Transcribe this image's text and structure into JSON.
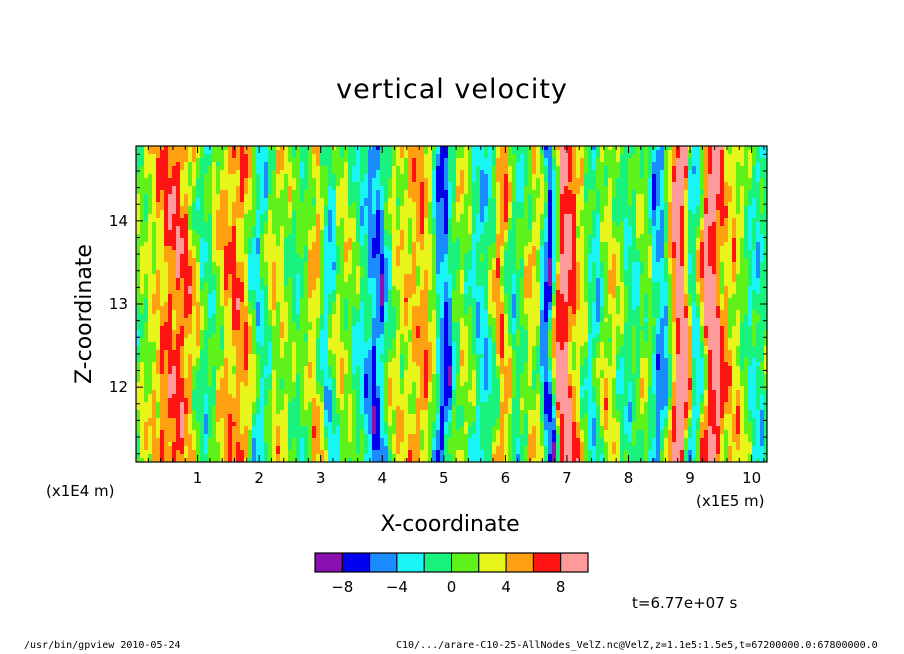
{
  "chart_data": {
    "type": "heatmap",
    "title": "vertical velocity",
    "xlabel": "X-coordinate",
    "ylabel": "Z-coordinate",
    "x_unit": "(x1E5 m)",
    "y_unit": "(x1E4 m)",
    "xlim": [
      0,
      10.25
    ],
    "ylim": [
      11.1,
      14.9
    ],
    "x_ticks": [
      1,
      2,
      3,
      4,
      5,
      6,
      7,
      8,
      9,
      10
    ],
    "y_ticks": [
      12,
      13,
      14
    ],
    "colorbar": {
      "levels": [
        -10,
        -8,
        -6,
        -4,
        -2,
        0,
        2,
        4,
        6,
        8,
        10
      ],
      "tick_labels": [
        -8,
        -4,
        0,
        4,
        8
      ],
      "colors": [
        "#8a0fb0",
        "#0000ee",
        "#1a8cff",
        "#19f5f5",
        "#19f27c",
        "#5ef21a",
        "#e8f51a",
        "#ffa011",
        "#ff1414",
        "#ff9a9a"
      ]
    },
    "time_label": "t=6.77e+07 s"
  },
  "footer": {
    "left": "/usr/bin/gpview   2010-05-24",
    "right": "C10/.../arare-C10-25-AllNodes_VelZ.nc@VelZ,z=1.1e5:1.5e5,t=67200000.0:67800000.0"
  }
}
